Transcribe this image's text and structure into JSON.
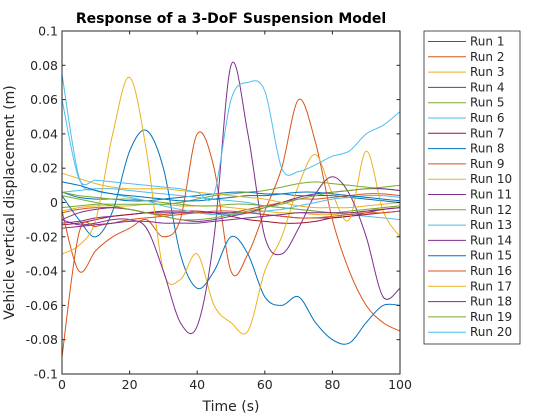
{
  "chart_data": {
    "type": "line",
    "title": "Response of a 3-DoF Suspension Model",
    "xlabel": "Time (s)",
    "ylabel": "Vehicle vertical displacement (m)",
    "xlim": [
      0,
      100
    ],
    "ylim": [
      -0.1,
      0.1
    ],
    "xticks": [
      0,
      20,
      40,
      60,
      80,
      100
    ],
    "yticks": [
      -0.1,
      -0.08,
      -0.06,
      -0.04,
      -0.02,
      0,
      0.02,
      0.04,
      0.06,
      0.08,
      0.1
    ],
    "xtick_labels": [
      "0",
      "20",
      "40",
      "60",
      "80",
      "100"
    ],
    "ytick_labels": [
      "-0.1",
      "-0.08",
      "-0.06",
      "-0.04",
      "-0.02",
      "0",
      "0.02",
      "0.04",
      "0.06",
      "0.08",
      "0.1"
    ],
    "grid": false,
    "legend_position": "outside-right",
    "x": [
      0,
      5,
      10,
      15,
      20,
      25,
      30,
      35,
      40,
      45,
      50,
      55,
      60,
      65,
      70,
      75,
      80,
      85,
      90,
      95,
      100
    ],
    "series": [
      {
        "name": "Run 1",
        "color": "#0072BD",
        "values": [
          0.006,
          0.003,
          0.002,
          0.002,
          0.001,
          0.001,
          0.002,
          0.003,
          0.004,
          0.005,
          0.006,
          0.006,
          0.005,
          0.005,
          0.004,
          0.004,
          0.004,
          0.003,
          0.002,
          0.001,
          0.0
        ]
      },
      {
        "name": "Run 2",
        "color": "#D95319",
        "values": [
          -0.006,
          -0.004,
          -0.003,
          -0.003,
          -0.004,
          -0.006,
          -0.007,
          -0.006,
          -0.006,
          -0.007,
          -0.006,
          -0.004,
          -0.002,
          0.0,
          0.002,
          0.002,
          0.003,
          0.004,
          0.005,
          0.005,
          0.004
        ]
      },
      {
        "name": "Run 3",
        "color": "#EDB120",
        "values": [
          -0.005,
          -0.003,
          -0.002,
          -0.002,
          -0.002,
          -0.001,
          -0.001,
          -0.002,
          -0.002,
          -0.002,
          -0.003,
          -0.004,
          -0.005,
          -0.006,
          -0.006,
          -0.007,
          -0.007,
          -0.006,
          -0.005,
          -0.003,
          -0.002
        ]
      },
      {
        "name": "Run 4",
        "color": "#7E2F8E",
        "values": [
          -0.012,
          -0.011,
          -0.009,
          -0.008,
          -0.007,
          -0.006,
          -0.006,
          -0.006,
          -0.006,
          -0.006,
          -0.006,
          -0.006,
          -0.007,
          -0.008,
          -0.009,
          -0.009,
          -0.009,
          -0.008,
          -0.006,
          -0.004,
          -0.003
        ]
      },
      {
        "name": "Run 5",
        "color": "#77AC30",
        "values": [
          -0.003,
          -0.002,
          -0.001,
          -0.001,
          -0.001,
          -0.001,
          -0.001,
          0.0,
          0.002,
          0.004,
          0.005,
          0.006,
          0.007,
          0.009,
          0.011,
          0.012,
          0.011,
          0.01,
          0.009,
          0.008,
          0.007
        ]
      },
      {
        "name": "Run 6",
        "color": "#4DBEEE",
        "values": [
          0.006,
          0.007,
          0.008,
          0.008,
          0.007,
          0.006,
          0.005,
          0.004,
          0.003,
          0.002,
          0.001,
          0.0,
          -0.002,
          -0.003,
          -0.004,
          -0.005,
          -0.006,
          -0.007,
          -0.008,
          -0.009,
          -0.01
        ]
      },
      {
        "name": "Run 7",
        "color": "#A2142F",
        "values": [
          -0.013,
          -0.012,
          -0.01,
          -0.008,
          -0.007,
          -0.006,
          -0.005,
          -0.005,
          -0.005,
          -0.006,
          -0.008,
          -0.01,
          -0.011,
          -0.012,
          -0.012,
          -0.011,
          -0.009,
          -0.008,
          -0.007,
          -0.006,
          -0.005
        ]
      },
      {
        "name": "Run 8",
        "color": "#0072BD",
        "values": [
          0.004,
          -0.01,
          -0.02,
          -0.005,
          0.03,
          0.042,
          0.02,
          -0.03,
          -0.05,
          -0.04,
          -0.02,
          -0.03,
          -0.055,
          -0.06,
          -0.055,
          -0.07,
          -0.08,
          -0.082,
          -0.07,
          -0.06,
          -0.06
        ]
      },
      {
        "name": "Run 9",
        "color": "#D95319",
        "values": [
          -0.005,
          -0.04,
          -0.028,
          -0.02,
          -0.015,
          -0.01,
          -0.02,
          -0.01,
          0.04,
          0.02,
          -0.04,
          -0.03,
          -0.005,
          0.02,
          0.06,
          0.035,
          -0.01,
          -0.04,
          -0.06,
          -0.07,
          -0.075
        ]
      },
      {
        "name": "Run 10",
        "color": "#EDB120",
        "values": [
          -0.03,
          -0.025,
          -0.01,
          0.04,
          0.073,
          0.03,
          -0.04,
          -0.045,
          -0.03,
          -0.06,
          -0.07,
          -0.075,
          -0.04,
          -0.02,
          0.01,
          0.028,
          0.005,
          -0.01,
          0.03,
          -0.005,
          -0.02
        ]
      },
      {
        "name": "Run 11",
        "color": "#7E2F8E",
        "values": [
          -0.01,
          -0.013,
          -0.012,
          -0.01,
          -0.01,
          -0.015,
          -0.04,
          -0.07,
          -0.072,
          -0.02,
          0.08,
          0.04,
          -0.02,
          -0.03,
          -0.015,
          0.005,
          0.015,
          0.005,
          -0.02,
          -0.055,
          -0.05
        ]
      },
      {
        "name": "Run 12",
        "color": "#77AC30",
        "values": [
          0.006,
          0.004,
          0.003,
          0.002,
          0.002,
          0.001,
          0.0,
          -0.001,
          -0.002,
          -0.002,
          -0.001,
          -0.001,
          -0.002,
          -0.003,
          -0.004,
          -0.005,
          -0.006,
          -0.005,
          -0.004,
          -0.003,
          -0.002
        ]
      },
      {
        "name": "Run 13",
        "color": "#4DBEEE",
        "values": [
          0.075,
          0.015,
          0.007,
          0.005,
          0.003,
          0.001,
          -0.002,
          -0.004,
          -0.006,
          -0.007,
          -0.007,
          -0.006,
          -0.005,
          -0.004,
          -0.002,
          0.0,
          0.002,
          0.003,
          0.004,
          0.004,
          0.003
        ]
      },
      {
        "name": "Run 14",
        "color": "#7E2F8E",
        "values": [
          -0.01,
          -0.006,
          -0.004,
          -0.003,
          -0.004,
          -0.006,
          -0.008,
          -0.01,
          -0.011,
          -0.01,
          -0.008,
          -0.006,
          -0.003,
          0.0,
          0.003,
          0.005,
          0.006,
          0.007,
          0.008,
          0.008,
          0.007
        ]
      },
      {
        "name": "Run 15",
        "color": "#0072BD",
        "values": [
          0.012,
          0.01,
          0.007,
          0.005,
          0.004,
          0.003,
          0.002,
          0.001,
          0.001,
          0.002,
          0.003,
          0.004,
          0.004,
          0.005,
          0.006,
          0.006,
          0.005,
          0.004,
          0.003,
          0.002,
          0.001
        ]
      },
      {
        "name": "Run 16",
        "color": "#D95319",
        "values": [
          -0.09,
          -0.018,
          -0.014,
          -0.012,
          -0.01,
          -0.009,
          -0.008,
          -0.007,
          -0.006,
          -0.005,
          -0.005,
          -0.006,
          -0.007,
          -0.008,
          -0.009,
          -0.009,
          -0.008,
          -0.007,
          -0.006,
          -0.006,
          -0.005
        ]
      },
      {
        "name": "Run 17",
        "color": "#EDB120",
        "values": [
          0.017,
          0.014,
          0.011,
          0.009,
          0.008,
          0.008,
          0.008,
          0.007,
          0.006,
          0.005,
          0.004,
          0.003,
          0.002,
          0.0,
          -0.002,
          -0.003,
          -0.003,
          -0.003,
          -0.002,
          -0.001,
          0.0
        ]
      },
      {
        "name": "Run 18",
        "color": "#7E2F8E",
        "values": [
          -0.015,
          -0.014,
          -0.013,
          -0.012,
          -0.011,
          -0.011,
          -0.012,
          -0.012,
          -0.012,
          -0.011,
          -0.01,
          -0.009,
          -0.008,
          -0.007,
          -0.006,
          -0.006,
          -0.006,
          -0.006,
          -0.005,
          -0.004,
          -0.003
        ]
      },
      {
        "name": "Run 19",
        "color": "#77AC30",
        "values": [
          0.004,
          0.002,
          0.0,
          -0.002,
          -0.004,
          -0.006,
          -0.008,
          -0.01,
          -0.01,
          -0.009,
          -0.007,
          -0.005,
          -0.003,
          -0.001,
          0.002,
          0.004,
          0.006,
          0.007,
          0.008,
          0.009,
          0.01
        ]
      },
      {
        "name": "Run 20",
        "color": "#4DBEEE",
        "values": [
          0.06,
          0.014,
          0.013,
          0.012,
          0.011,
          0.01,
          0.009,
          0.008,
          0.006,
          0.005,
          0.06,
          0.07,
          0.065,
          0.02,
          0.018,
          0.022,
          0.027,
          0.03,
          0.04,
          0.045,
          0.053
        ]
      }
    ]
  }
}
